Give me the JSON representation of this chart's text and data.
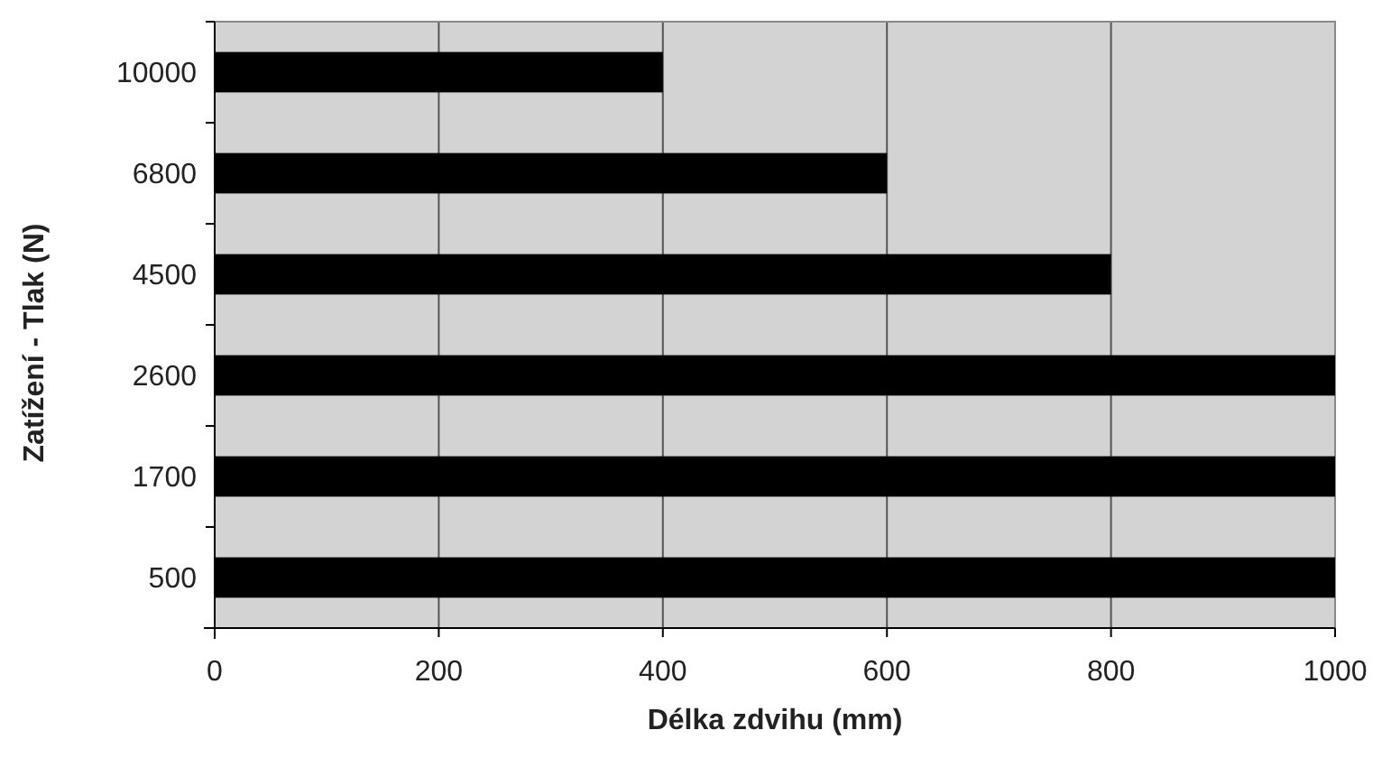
{
  "chart_data": {
    "type": "bar",
    "orientation": "horizontal",
    "xlabel": "Délka zdvihu (mm)",
    "ylabel": "Zatížení - Tlak (N)",
    "categories": [
      "10000",
      "6800",
      "4500",
      "2600",
      "1700",
      "500"
    ],
    "values": [
      400,
      600,
      800,
      1000,
      1000,
      1000
    ],
    "color": "#000000",
    "xlim": [
      0,
      1000
    ],
    "xticks": [
      0,
      200,
      400,
      600,
      800,
      1000
    ],
    "grid": "x"
  }
}
